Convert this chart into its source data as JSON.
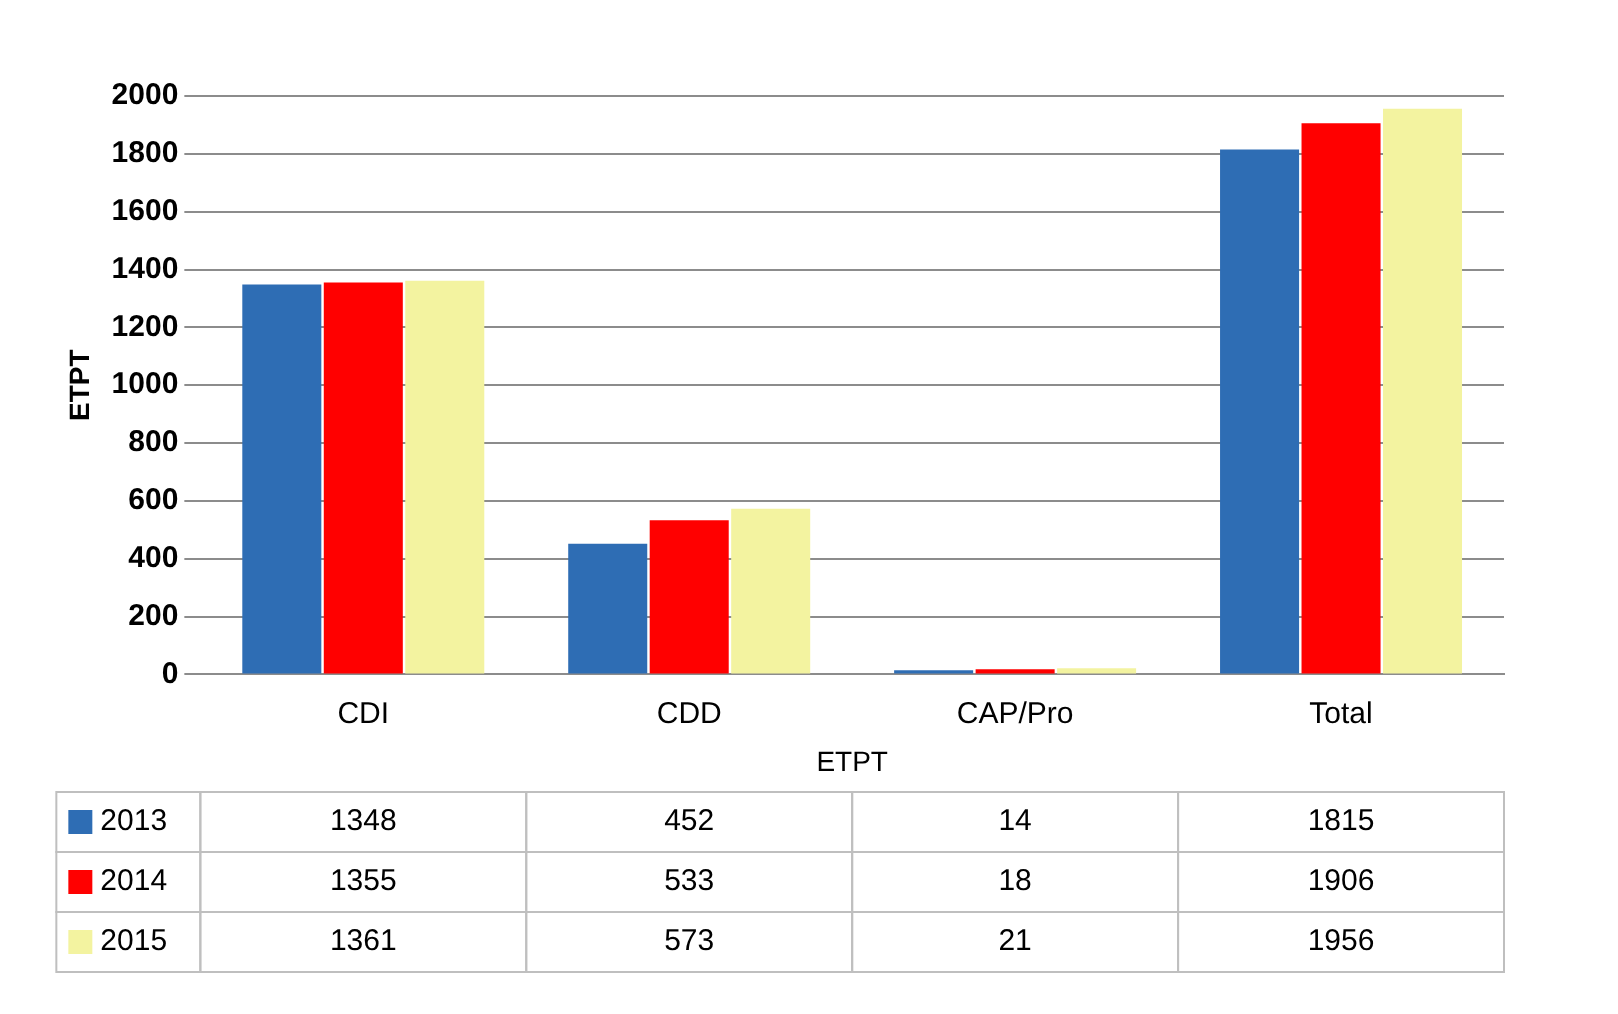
{
  "chart_data": {
    "type": "bar",
    "xlabel": "ETPT",
    "ylabel": "ETPT",
    "categories": [
      "CDI",
      "CDD",
      "CAP/Pro",
      "Total"
    ],
    "series": [
      {
        "name": "2013",
        "color": "#2e6db4",
        "values": [
          1348,
          452,
          14,
          1815
        ]
      },
      {
        "name": "2014",
        "color": "#ff0000",
        "values": [
          1355,
          533,
          18,
          1906
        ]
      },
      {
        "name": "2015",
        "color": "#f3f3a0",
        "values": [
          1361,
          573,
          21,
          1956
        ]
      }
    ],
    "ylim": [
      0,
      2000
    ],
    "yticks": [
      0,
      200,
      400,
      600,
      800,
      1000,
      1200,
      1400,
      1600,
      1800,
      2000
    ],
    "grid": "y",
    "legend": "bottom",
    "data_labels": true
  }
}
